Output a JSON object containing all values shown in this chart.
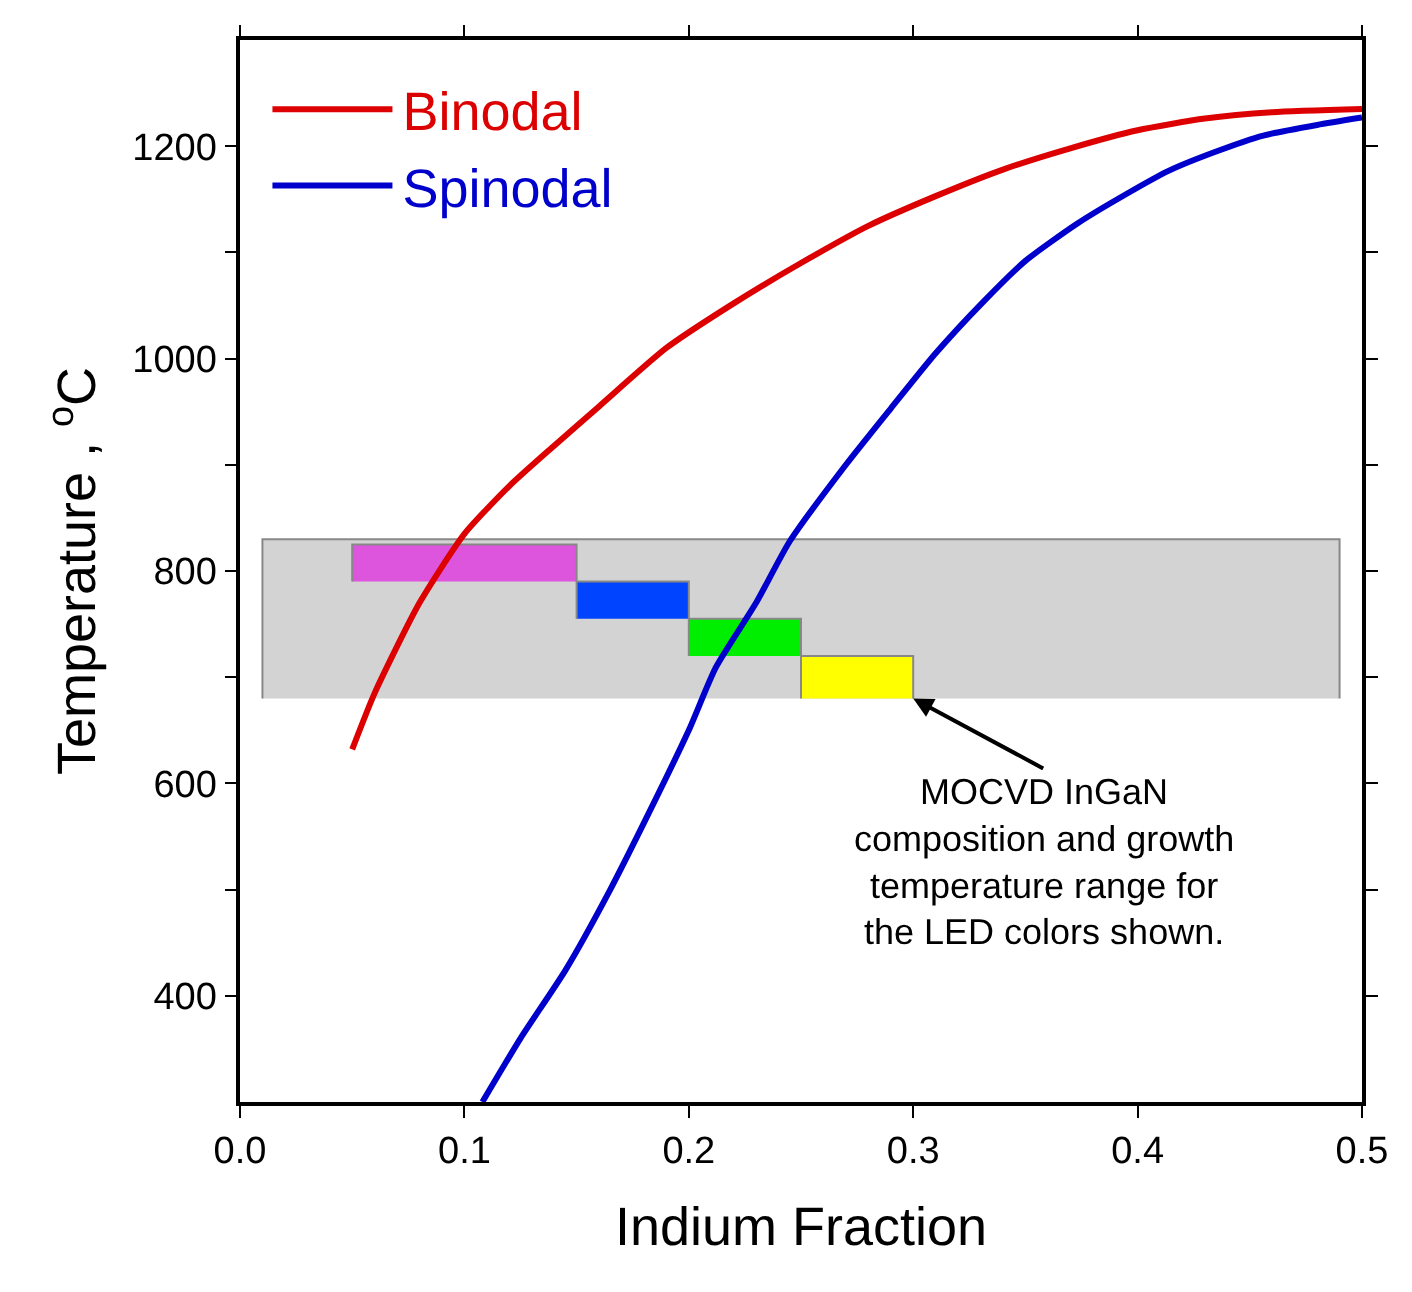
{
  "chart_data": {
    "type": "line",
    "xlabel": "Indium Fraction",
    "ylabel": "Temperature , $^{o}$C",
    "xlim": [
      0,
      0.5
    ],
    "ylim": [
      300,
      1300
    ],
    "xticks": [
      {
        "value": 0,
        "label": "0.0"
      },
      0.1,
      0.2,
      0.3,
      0.4,
      0.5
    ],
    "yticks": [
      400,
      {
        "value": 500,
        "label": null
      },
      600,
      {
        "value": 700,
        "label": null
      },
      800,
      {
        "value": 900,
        "label": null
      },
      1000,
      {
        "value": 1100,
        "label": null
      },
      1200
    ],
    "legend": "top left",
    "line_style": "solid",
    "marker": "none",
    "series": [
      {
        "type": "area",
        "color": "#d3d3d3",
        "x": [
          0.01,
          0.01,
          0.49,
          0.49
        ],
        "values": [
          680,
          830,
          830,
          680
        ]
      },
      {
        "type": "area",
        "color": "#dd55dd",
        "x": [
          0.05,
          0.05,
          0.15,
          0.15
        ],
        "values": [
          790,
          825,
          825,
          790
        ]
      },
      {
        "type": "area",
        "color": "#0044ff",
        "x": [
          0.15,
          0.15,
          0.2,
          0.2
        ],
        "values": [
          755,
          790,
          790,
          755
        ]
      },
      {
        "type": "area",
        "color": "#00ee00",
        "x": [
          0.2,
          0.2,
          0.25,
          0.25
        ],
        "values": [
          720,
          755,
          755,
          720
        ]
      },
      {
        "type": "area",
        "color": "#ffff00",
        "x": [
          0.25,
          0.25,
          0.3,
          0.3
        ],
        "values": [
          680,
          720,
          720,
          680
        ]
      },
      {
        "name": "Binodal",
        "color": "#dd0000",
        "x": [
          0.05,
          0.06,
          0.08,
          0.1,
          0.12,
          0.14,
          0.16,
          0.19,
          0.22,
          0.25,
          0.28,
          0.31,
          0.34,
          0.37,
          0.4,
          0.43,
          0.46,
          0.5
        ],
        "values": [
          632,
          685,
          770,
          835,
          880,
          918,
          955,
          1010,
          1052,
          1090,
          1125,
          1153,
          1178,
          1198,
          1215,
          1226,
          1232,
          1235
        ]
      },
      {
        "name": "Spinodal",
        "color": "#0000cc",
        "x": [
          0.108,
          0.125,
          0.145,
          0.165,
          0.181,
          0.2,
          0.212,
          0.23,
          0.245,
          0.27,
          0.29,
          0.31,
          0.331,
          0.35,
          0.373,
          0.395,
          0.414,
          0.435,
          0.456,
          0.48,
          0.5
        ],
        "values": [
          300,
          360,
          424,
          500,
          567,
          650,
          709,
          770,
          828,
          900,
          953,
          1005,
          1053,
          1092,
          1127,
          1155,
          1177,
          1195,
          1210,
          1220,
          1227
        ]
      }
    ],
    "annotations": [
      {
        "text": "MOCVD InGaN\ncomposition and growth\ntemperature range for\nthe LED colors shown.",
        "x": 0.3,
        "y": 680
      }
    ]
  }
}
